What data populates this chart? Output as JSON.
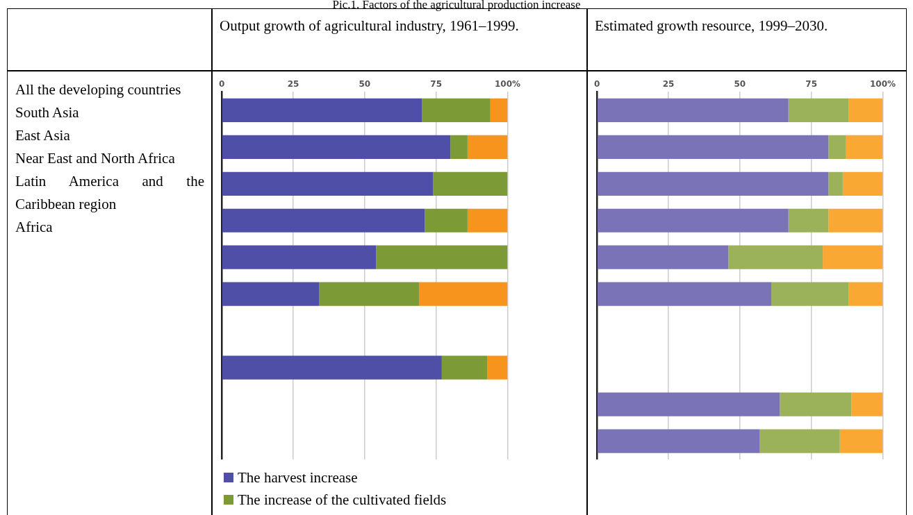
{
  "chart_data": [
    {
      "type": "other",
      "title": "Pic.1. Factors of the agricultural production increase",
      "annotations": [
        "All the developing countries",
        "South Asia",
        "East Asia",
        "Near East and North Africa",
        "Latin America and the Caribbean region",
        "Africa"
      ]
    },
    {
      "type": "bar",
      "orientation": "horizontal",
      "stacked": true,
      "title": "Output growth of agricultural industry, 1961–1999.",
      "categories": [
        null,
        null,
        null,
        null,
        null,
        null,
        null,
        null,
        null,
        null
      ],
      "series": [
        {
          "name": "The harvest increase",
          "color": "#4f4fa8",
          "values": [
            70,
            80,
            74,
            71,
            54,
            34,
            null,
            77,
            null,
            null
          ]
        },
        {
          "name": "The increase of the cultivated fields",
          "color": "#7c9a36",
          "values": [
            24,
            6,
            26,
            15,
            46,
            35,
            null,
            16,
            null,
            null
          ]
        },
        {
          "color": "#f7941d",
          "values": [
            6,
            14,
            0,
            14,
            0,
            31,
            null,
            7,
            null,
            null
          ]
        }
      ],
      "xlim": [
        0,
        100
      ],
      "xticks": [
        0,
        25,
        50,
        75,
        {
          "value": 100,
          "label": "100%"
        }
      ],
      "grid": "x",
      "tick_labels": "x",
      "legend": "bottom"
    },
    {
      "type": "bar",
      "orientation": "horizontal",
      "stacked": true,
      "title": "Estimated growth resource, 1999–2030.",
      "categories": [
        null,
        null,
        null,
        null,
        null,
        null,
        null,
        null,
        null,
        null
      ],
      "series": [
        {
          "color": "#7b73b8",
          "values": [
            67,
            81,
            81,
            67,
            46,
            61,
            null,
            null,
            64,
            57
          ]
        },
        {
          "color": "#9bb25a",
          "values": [
            21,
            6,
            5,
            14,
            33,
            27,
            null,
            null,
            25,
            28
          ]
        },
        {
          "color": "#f9a833",
          "values": [
            12,
            13,
            14,
            19,
            21,
            12,
            null,
            null,
            11,
            15
          ]
        }
      ],
      "xlim": [
        0,
        100
      ],
      "xticks": [
        0,
        25,
        50,
        75,
        {
          "value": 100,
          "label": "100%"
        }
      ],
      "grid": "x",
      "tick_labels": "x"
    }
  ]
}
